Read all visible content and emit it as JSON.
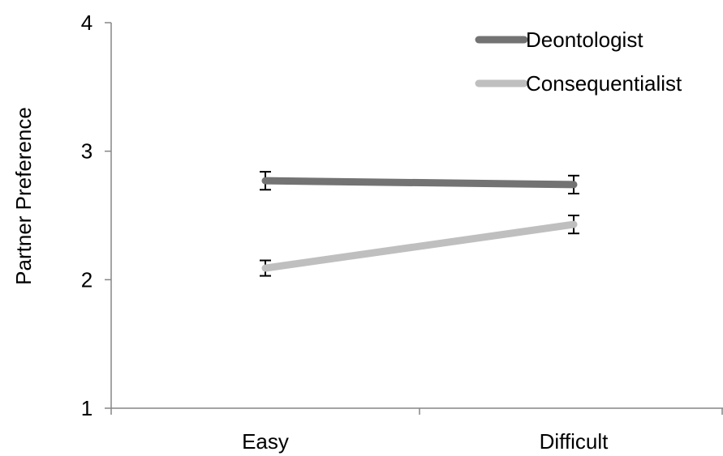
{
  "chart_data": {
    "type": "line",
    "title": "",
    "xlabel": "",
    "ylabel": "Partner Preference",
    "categories": [
      "Easy",
      "Difficult"
    ],
    "ylim": [
      1,
      4
    ],
    "yticks": [
      1,
      2,
      3,
      4
    ],
    "grid": false,
    "legend_position": "top-right",
    "series": [
      {
        "name": "Deontologist",
        "values": [
          2.77,
          2.74
        ],
        "errors": [
          0.07,
          0.07
        ],
        "color": "#737373"
      },
      {
        "name": "Consequentialist",
        "values": [
          2.09,
          2.43
        ],
        "errors": [
          0.06,
          0.07
        ],
        "color": "#bfbfbf"
      }
    ]
  }
}
